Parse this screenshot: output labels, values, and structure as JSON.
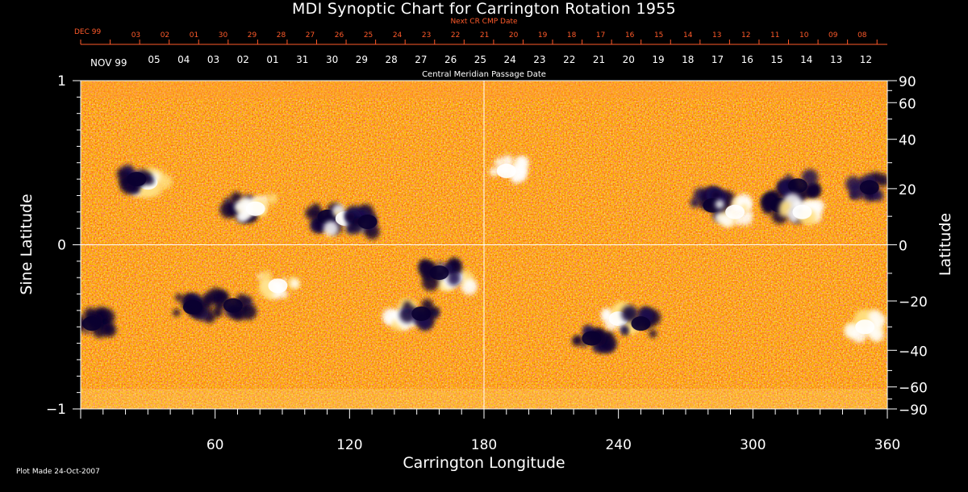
{
  "chart_data": {
    "type": "heatmap",
    "title": "MDI Synoptic Chart for Carrington Rotation 1955",
    "xlabel": "Carrington Longitude",
    "ylabel_left": "Sine Latitude",
    "ylabel_right": "Latitude",
    "top_axis_title": "Next CR CMP Date",
    "top_axis_first_label": "DEC 99",
    "top_axis_ticks": [
      "03",
      "02",
      "01",
      "30",
      "29",
      "28",
      "27",
      "26",
      "25",
      "24",
      "23",
      "22",
      "21",
      "20",
      "19",
      "18",
      "17",
      "16",
      "15",
      "14",
      "13",
      "12",
      "11",
      "10",
      "09",
      "08"
    ],
    "second_axis_first_label": "NOV 99",
    "second_axis_ticks": [
      "05",
      "04",
      "03",
      "02",
      "01",
      "31",
      "30",
      "29",
      "28",
      "27",
      "26",
      "25",
      "24",
      "23",
      "22",
      "21",
      "20",
      "19",
      "18",
      "17",
      "16",
      "15",
      "14",
      "13",
      "12"
    ],
    "second_axis_title": "Central Meridian Passage Date",
    "xlim": [
      0,
      360
    ],
    "x_ticks": [
      60,
      120,
      180,
      240,
      300,
      360
    ],
    "ylim_sine": [
      -1,
      1
    ],
    "y_ticks_sine": [
      "1",
      "0",
      "−1"
    ],
    "y_ticks_latitude": [
      "90",
      "60",
      "40",
      "20",
      "0",
      "−20",
      "−40",
      "−60",
      "−90"
    ],
    "y_ticks_latitude_values": [
      90,
      60,
      40,
      20,
      0,
      -20,
      -40,
      -60,
      -90
    ],
    "colormap": [
      "#0a0030",
      "#6a0c10",
      "#d22a00",
      "#ff5a10",
      "#ff9a30",
      "#ffe080",
      "#ffffff"
    ],
    "regions": [
      {
        "lon": 30,
        "sinlat": 0.38,
        "polarity": "positive"
      },
      {
        "lon": 25,
        "sinlat": 0.4,
        "polarity": "negative"
      },
      {
        "lon": 72,
        "sinlat": 0.22,
        "polarity": "negative"
      },
      {
        "lon": 78,
        "sinlat": 0.22,
        "polarity": "positive"
      },
      {
        "lon": 110,
        "sinlat": 0.17,
        "polarity": "negative"
      },
      {
        "lon": 118,
        "sinlat": 0.16,
        "polarity": "positive"
      },
      {
        "lon": 128,
        "sinlat": 0.14,
        "polarity": "negative"
      },
      {
        "lon": 190,
        "sinlat": 0.45,
        "polarity": "positive"
      },
      {
        "lon": 282,
        "sinlat": 0.24,
        "polarity": "negative"
      },
      {
        "lon": 292,
        "sinlat": 0.2,
        "polarity": "positive"
      },
      {
        "lon": 312,
        "sinlat": 0.24,
        "polarity": "negative"
      },
      {
        "lon": 320,
        "sinlat": 0.36,
        "polarity": "negative"
      },
      {
        "lon": 322,
        "sinlat": 0.2,
        "polarity": "positive"
      },
      {
        "lon": 352,
        "sinlat": 0.35,
        "polarity": "negative"
      },
      {
        "lon": 88,
        "sinlat": -0.25,
        "polarity": "positive"
      },
      {
        "lon": 68,
        "sinlat": -0.37,
        "polarity": "negative"
      },
      {
        "lon": 50,
        "sinlat": -0.38,
        "polarity": "negative"
      },
      {
        "lon": 146,
        "sinlat": -0.43,
        "polarity": "positive"
      },
      {
        "lon": 152,
        "sinlat": -0.42,
        "polarity": "negative"
      },
      {
        "lon": 166,
        "sinlat": -0.2,
        "polarity": "positive"
      },
      {
        "lon": 160,
        "sinlat": -0.17,
        "polarity": "negative"
      },
      {
        "lon": 240,
        "sinlat": -0.45,
        "polarity": "positive"
      },
      {
        "lon": 250,
        "sinlat": -0.48,
        "polarity": "negative"
      },
      {
        "lon": 228,
        "sinlat": -0.57,
        "polarity": "negative"
      },
      {
        "lon": 350,
        "sinlat": -0.5,
        "polarity": "positive"
      },
      {
        "lon": 5,
        "sinlat": -0.48,
        "polarity": "negative"
      }
    ]
  },
  "footer": {
    "plot_made": "Plot Made 24-Oct-2007"
  }
}
